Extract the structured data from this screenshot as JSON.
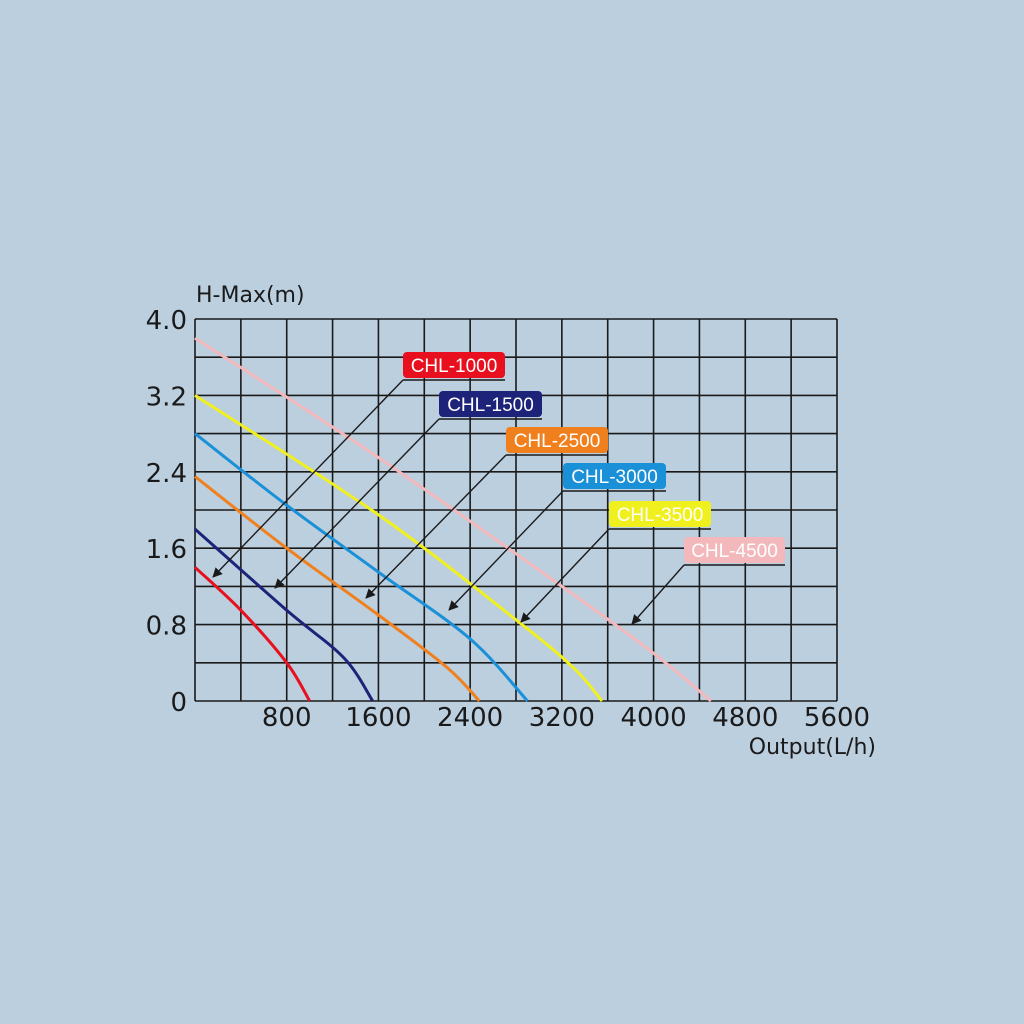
{
  "chart_data": {
    "type": "line",
    "xlabel": "Output(L/h)",
    "ylabel": "H-Max(m)",
    "xlim": [
      0,
      5600
    ],
    "ylim": [
      0,
      4.0
    ],
    "x_ticks": [
      "800",
      "1600",
      "2400",
      "3200",
      "4000",
      "4800",
      "5600"
    ],
    "x_tick_values": [
      800,
      1600,
      2400,
      3200,
      4000,
      4800,
      5600
    ],
    "y_ticks": [
      "0",
      "0.8",
      "1.6",
      "2.4",
      "3.2",
      "4.0"
    ],
    "y_tick_values": [
      0,
      0.8,
      1.6,
      2.4,
      3.2,
      4.0
    ],
    "grid": true,
    "series": [
      {
        "name": "CHL-1000",
        "color": "#e8101e",
        "label_color": "#e8101e",
        "points": [
          [
            0,
            1.4
          ],
          [
            400,
            0.95
          ],
          [
            800,
            0.4
          ],
          [
            1000,
            0
          ]
        ]
      },
      {
        "name": "CHL-1500",
        "color": "#1e237a",
        "label_color": "#1e237a",
        "points": [
          [
            0,
            1.8
          ],
          [
            800,
            0.95
          ],
          [
            1300,
            0.45
          ],
          [
            1550,
            0
          ]
        ]
      },
      {
        "name": "CHL-2500",
        "color": "#f0801e",
        "label_color": "#f0801e",
        "points": [
          [
            0,
            2.35
          ],
          [
            800,
            1.6
          ],
          [
            1600,
            0.9
          ],
          [
            2200,
            0.35
          ],
          [
            2480,
            0
          ]
        ]
      },
      {
        "name": "CHL-3000",
        "color": "#1a90d8",
        "label_color": "#1a90d8",
        "points": [
          [
            0,
            2.8
          ],
          [
            800,
            2.05
          ],
          [
            1600,
            1.35
          ],
          [
            2400,
            0.65
          ],
          [
            2900,
            0
          ]
        ]
      },
      {
        "name": "CHL-3500",
        "color": "#f0f01e",
        "label_color": "#f0f01e",
        "points": [
          [
            0,
            3.2
          ],
          [
            1600,
            1.95
          ],
          [
            2800,
            0.85
          ],
          [
            3300,
            0.35
          ],
          [
            3550,
            0
          ]
        ]
      },
      {
        "name": "CHL-4500",
        "color": "#f2b8bc",
        "label_color": "#f2b8bc",
        "points": [
          [
            0,
            3.8
          ],
          [
            1600,
            2.55
          ],
          [
            3200,
            1.2
          ],
          [
            4000,
            0.5
          ],
          [
            4500,
            0
          ]
        ]
      }
    ]
  }
}
